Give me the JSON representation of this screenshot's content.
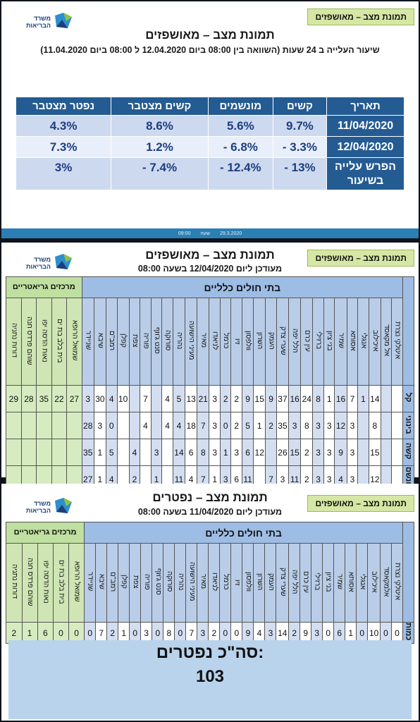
{
  "logo": {
    "line1": "משרד",
    "line2": "הבריאות"
  },
  "tag": "תמונת מצב – מאושפזים",
  "slide1": {
    "title": "תמונת מצב – מאושפזים",
    "subtitle": "שיעור העלייה ב 24 שעות (השוואה בין 08:00 ביום 12.04.2020 ל 08:00 ביום 11.04.2020)",
    "headers": [
      "תאריך",
      "קשים",
      "מונשמים",
      "קשים מצטבר",
      "נפטר מצטבר"
    ],
    "rows": [
      {
        "label": "11/04/2020",
        "values": [
          "9.7%",
          "5.6%",
          "8.6%",
          "4.3%"
        ]
      },
      {
        "label": "12/04/2020",
        "values": [
          "3.3% -",
          "6.8% -",
          "1.2%",
          "7.3%"
        ]
      },
      {
        "label": "הפרש עלייה בשיעור",
        "values": [
          "13% -",
          "12.4% -",
          "7.4% -",
          "3%"
        ]
      }
    ],
    "footer": {
      "date": "29.3.2020",
      "time_label": "שעה",
      "time": "09:00"
    }
  },
  "slide2": {
    "title": "תמונת מצב – מאושפזים",
    "subtitle": "מעודכן ליום 12/04/2020 בשעה 08:00",
    "general_header": "בתי חולים כלליים",
    "geriatric_header": "מרכזים גריאטריים",
    "hospitals": [
      "איטלקי נצרת",
      "אל מקאסד",
      "איכילוב",
      "אנגלי",
      "אסותא",
      "שמיר",
      "בני ציון",
      "ברזילי",
      "עין כרם",
      "הלל יפה",
      "שערי צדק",
      "העמק",
      "השרון",
      "וולפסון",
      "זיו",
      "כרמל",
      "לניאדו",
      "מאיר",
      "מעיני הישועה",
      "נהריה",
      "סורוקה",
      "סנט ג'וזף",
      "פוריה",
      "צפת",
      "קפלן",
      "רמב\"ם",
      "שיבא",
      "שניידר"
    ],
    "geriatrics": [
      "שמואל הרופא",
      "בית בלב בת ים",
      "נאות הדסה יפו",
      "שוהם פרדס חנה",
      "דורות נתניה"
    ],
    "rows": [
      {
        "label": "קל",
        "values": [
          "",
          "",
          "14",
          "1",
          "7",
          "16",
          "1",
          "8",
          "24",
          "16",
          "37",
          "9",
          "15",
          "9",
          "2",
          "2",
          "3",
          "21",
          "13",
          "5",
          "4",
          "",
          "7",
          "",
          "10",
          "4",
          "30",
          "3"
        ],
        "geri": [
          "27",
          "22",
          "35",
          "28",
          "29"
        ]
      },
      {
        "label": "בינוני",
        "values": [
          "",
          "",
          "8",
          "",
          "3",
          "12",
          "3",
          "3",
          "8",
          "3",
          "35",
          "2",
          "1",
          "5",
          "2",
          "0",
          "3",
          "7",
          "18",
          "4",
          "4",
          "",
          "4",
          "",
          "",
          "0",
          "3",
          "28"
        ],
        "geri": [
          "",
          "",
          "",
          "",
          ""
        ]
      },
      {
        "label": "קשה",
        "values": [
          "",
          "",
          "15",
          "",
          "3",
          "9",
          "3",
          "3",
          "2",
          "15",
          "26",
          "",
          "12",
          "6",
          "3",
          "1",
          "3",
          "8",
          "6",
          "14",
          "",
          "3",
          "",
          "4",
          "",
          "5",
          "1",
          "35"
        ],
        "geri": [
          "",
          "",
          "",
          "",
          ""
        ]
      },
      {
        "label": "מונשם",
        "values": [
          "",
          "",
          "12",
          "",
          "3",
          "4",
          "3",
          "3",
          "2",
          "11",
          "3",
          "7",
          "",
          "11",
          "6",
          "3",
          "1",
          "7",
          "4",
          "11",
          "",
          "1",
          "",
          "2",
          "",
          "4",
          "1",
          "27"
        ],
        "geri": [
          "",
          "",
          "",
          "",
          ""
        ]
      }
    ]
  },
  "slide3": {
    "title": "תמונת מצב – נפטרים",
    "subtitle": "מעודכן ליום 11/04/2020 בשעה 08:00",
    "general_header": "בתי חולים כלליים",
    "geriatric_header": "מרכזים גריאטריים",
    "hospitals": [
      "איטלקי נצרת",
      "אלמקאסד",
      "איכילוב",
      "אנגלי",
      "אסותא",
      "שמיר",
      "בני ציון",
      "ברזילי",
      "עין כרם",
      "הלל יפה",
      "שערי צדק",
      "העמק",
      "השרון",
      "וולפסון",
      "זיו",
      "כרמל",
      "לניאדו",
      "מאיר",
      "מעיני הישועה",
      "נהריה",
      "סורוקה",
      "סנט ג'וזף",
      "פוריה",
      "צפת",
      "קפלן",
      "רמב\"ם",
      "שיבא",
      "שניידר"
    ],
    "geriatrics": [
      "שמואל הרופא",
      "בית בלב בת ים",
      "נאות הדסה יפו",
      "שוהם פרדס חנה",
      "דורות נתניה"
    ],
    "row_label": "כמות",
    "values": [
      "0",
      "0",
      "10",
      "0",
      "1",
      "6",
      "0",
      "3",
      "9",
      "2",
      "14",
      "3",
      "4",
      "9",
      "0",
      "0",
      "2",
      "3",
      "7",
      "0",
      "8",
      "0",
      "3",
      "0",
      "1",
      "2",
      "7",
      "0"
    ],
    "geri": [
      "0",
      "0",
      "6",
      "1",
      "2"
    ],
    "total_label": "סה\"כ נפטרים:",
    "total": "103"
  }
}
